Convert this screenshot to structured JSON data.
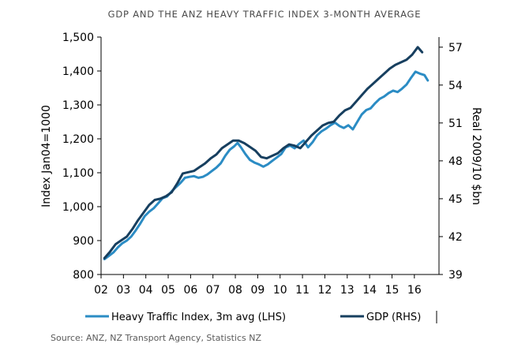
{
  "chart_data": {
    "type": "line",
    "title": "GDP AND THE ANZ HEAVY TRAFFIC INDEX 3-MONTH AVERAGE",
    "ylabel_left": "Index Jan04=1000",
    "ylabel_right": "Real 2009/10 $bn",
    "xlabel": "",
    "x_ticks": [
      "02",
      "03",
      "04",
      "05",
      "06",
      "07",
      "08",
      "09",
      "10",
      "11",
      "12",
      "13",
      "14",
      "15",
      "16"
    ],
    "y_left_ticks": [
      "800",
      "900",
      "1,000",
      "1,100",
      "1,200",
      "1,300",
      "1,400",
      "1,500"
    ],
    "y_right_ticks": [
      "39",
      "42",
      "45",
      "48",
      "51",
      "54",
      "57"
    ],
    "ylim_left": [
      800,
      1500
    ],
    "ylim_right": [
      39,
      57.8
    ],
    "xlim": [
      2002.0,
      2017.1
    ],
    "grid": false,
    "legend_position": "bottom",
    "series": [
      {
        "name": "Heavy Traffic Index, 3m avg (LHS)",
        "axis": "left",
        "color": "#2b8cc4",
        "points": [
          [
            2002.15,
            845
          ],
          [
            2002.35,
            855
          ],
          [
            2002.55,
            865
          ],
          [
            2002.75,
            880
          ],
          [
            2002.95,
            892
          ],
          [
            2003.15,
            900
          ],
          [
            2003.35,
            912
          ],
          [
            2003.55,
            930
          ],
          [
            2003.75,
            950
          ],
          [
            2003.95,
            972
          ],
          [
            2004.15,
            985
          ],
          [
            2004.35,
            995
          ],
          [
            2004.55,
            1010
          ],
          [
            2004.75,
            1025
          ],
          [
            2004.95,
            1030
          ],
          [
            2005.15,
            1045
          ],
          [
            2005.35,
            1058
          ],
          [
            2005.55,
            1070
          ],
          [
            2005.75,
            1085
          ],
          [
            2005.95,
            1088
          ],
          [
            2006.15,
            1090
          ],
          [
            2006.35,
            1085
          ],
          [
            2006.55,
            1088
          ],
          [
            2006.75,
            1095
          ],
          [
            2006.95,
            1105
          ],
          [
            2007.15,
            1115
          ],
          [
            2007.35,
            1128
          ],
          [
            2007.55,
            1150
          ],
          [
            2007.75,
            1168
          ],
          [
            2007.95,
            1178
          ],
          [
            2008.1,
            1188
          ],
          [
            2008.25,
            1175
          ],
          [
            2008.45,
            1155
          ],
          [
            2008.65,
            1138
          ],
          [
            2008.85,
            1130
          ],
          [
            2009.05,
            1125
          ],
          [
            2009.25,
            1118
          ],
          [
            2009.45,
            1125
          ],
          [
            2009.65,
            1135
          ],
          [
            2009.85,
            1145
          ],
          [
            2010.05,
            1155
          ],
          [
            2010.25,
            1175
          ],
          [
            2010.45,
            1180
          ],
          [
            2010.65,
            1172
          ],
          [
            2010.85,
            1185
          ],
          [
            2011.05,
            1195
          ],
          [
            2011.25,
            1175
          ],
          [
            2011.45,
            1190
          ],
          [
            2011.65,
            1210
          ],
          [
            2011.85,
            1222
          ],
          [
            2012.05,
            1230
          ],
          [
            2012.25,
            1240
          ],
          [
            2012.45,
            1248
          ],
          [
            2012.65,
            1238
          ],
          [
            2012.85,
            1232
          ],
          [
            2013.05,
            1240
          ],
          [
            2013.25,
            1228
          ],
          [
            2013.45,
            1250
          ],
          [
            2013.65,
            1272
          ],
          [
            2013.85,
            1285
          ],
          [
            2014.05,
            1290
          ],
          [
            2014.25,
            1305
          ],
          [
            2014.45,
            1318
          ],
          [
            2014.65,
            1325
          ],
          [
            2014.85,
            1335
          ],
          [
            2015.05,
            1342
          ],
          [
            2015.25,
            1338
          ],
          [
            2015.45,
            1348
          ],
          [
            2015.65,
            1360
          ],
          [
            2015.85,
            1380
          ],
          [
            2016.05,
            1398
          ],
          [
            2016.25,
            1392
          ],
          [
            2016.45,
            1388
          ],
          [
            2016.6,
            1372
          ]
        ]
      },
      {
        "name": "GDP (RHS)",
        "axis": "right",
        "color": "#173f5f",
        "points": [
          [
            2002.15,
            40.3
          ],
          [
            2002.4,
            40.8
          ],
          [
            2002.65,
            41.4
          ],
          [
            2002.9,
            41.7
          ],
          [
            2003.15,
            42.0
          ],
          [
            2003.4,
            42.6
          ],
          [
            2003.65,
            43.3
          ],
          [
            2003.9,
            43.9
          ],
          [
            2004.15,
            44.5
          ],
          [
            2004.4,
            44.9
          ],
          [
            2004.65,
            45.0
          ],
          [
            2004.9,
            45.2
          ],
          [
            2005.15,
            45.5
          ],
          [
            2005.4,
            46.2
          ],
          [
            2005.65,
            47.0
          ],
          [
            2005.9,
            47.1
          ],
          [
            2006.15,
            47.2
          ],
          [
            2006.4,
            47.5
          ],
          [
            2006.65,
            47.8
          ],
          [
            2006.9,
            48.2
          ],
          [
            2007.15,
            48.5
          ],
          [
            2007.4,
            49.0
          ],
          [
            2007.65,
            49.3
          ],
          [
            2007.9,
            49.6
          ],
          [
            2008.15,
            49.6
          ],
          [
            2008.4,
            49.4
          ],
          [
            2008.65,
            49.1
          ],
          [
            2008.9,
            48.8
          ],
          [
            2009.15,
            48.3
          ],
          [
            2009.4,
            48.2
          ],
          [
            2009.65,
            48.4
          ],
          [
            2009.9,
            48.6
          ],
          [
            2010.15,
            49.0
          ],
          [
            2010.4,
            49.3
          ],
          [
            2010.65,
            49.2
          ],
          [
            2010.9,
            49.0
          ],
          [
            2011.15,
            49.5
          ],
          [
            2011.4,
            50.0
          ],
          [
            2011.65,
            50.4
          ],
          [
            2011.9,
            50.8
          ],
          [
            2012.15,
            51.0
          ],
          [
            2012.4,
            51.1
          ],
          [
            2012.65,
            51.6
          ],
          [
            2012.9,
            52.0
          ],
          [
            2013.15,
            52.2
          ],
          [
            2013.4,
            52.7
          ],
          [
            2013.65,
            53.2
          ],
          [
            2013.9,
            53.7
          ],
          [
            2014.15,
            54.1
          ],
          [
            2014.4,
            54.5
          ],
          [
            2014.65,
            54.9
          ],
          [
            2014.9,
            55.3
          ],
          [
            2015.15,
            55.6
          ],
          [
            2015.4,
            55.8
          ],
          [
            2015.65,
            56.0
          ],
          [
            2015.9,
            56.4
          ],
          [
            2016.15,
            57.0
          ],
          [
            2016.35,
            56.6
          ]
        ]
      }
    ]
  },
  "footer": {
    "source": "Source:  ANZ, NZ Transport Agency, Statistics NZ"
  }
}
